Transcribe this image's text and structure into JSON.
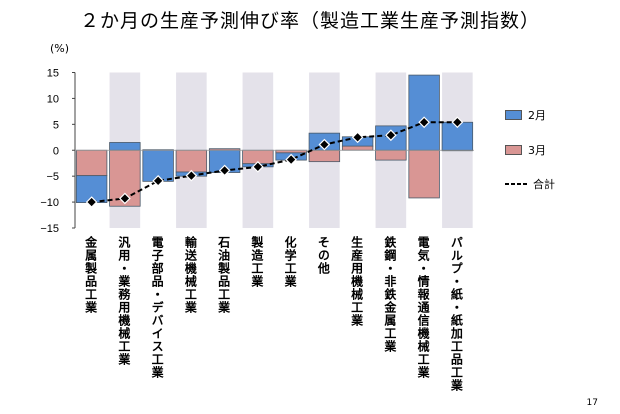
{
  "title": "２か月の生産予測伸び率（製造工業生産予測指数）",
  "page_number": "17",
  "chart_data": {
    "type": "bar",
    "stacked": true,
    "title": "２か月の生産予測伸び率（製造工業生産予測指数）",
    "ylabel": "(%)",
    "ylim": [
      -15,
      15
    ],
    "yticks": [
      15,
      10,
      5,
      0,
      -5,
      -10,
      -15
    ],
    "grid": false,
    "legend_position": "right",
    "categories": [
      "金属製品工業",
      "汎用・業務用機械工業",
      "電子部品・デバイス工業",
      "輸送機械工業",
      "石油製品工業",
      "製造工業",
      "化学工業",
      "その他",
      "生産用機械工業",
      "鉄鋼・非鉄金属工業",
      "電気・情報通信機械工業",
      "パルプ・紙・紙加工品工業"
    ],
    "series": [
      {
        "name": "2月",
        "type": "bar",
        "color": "#558ed5",
        "values": [
          -5.2,
          1.5,
          -6.0,
          -0.8,
          -4.3,
          -0.6,
          -1.4,
          3.3,
          1.8,
          4.7,
          14.5,
          5.4
        ]
      },
      {
        "name": "3月",
        "type": "bar",
        "color": "#d99694",
        "values": [
          -4.9,
          -10.8,
          0.1,
          -4.2,
          0.3,
          -2.6,
          -0.5,
          -2.2,
          0.8,
          -1.9,
          -9.2,
          0.0
        ]
      },
      {
        "name": "合計",
        "type": "line",
        "style": "dashed",
        "marker": "diamond",
        "color": "#000000",
        "values": [
          -10.0,
          -9.3,
          -5.9,
          -4.9,
          -3.9,
          -3.2,
          -1.8,
          1.1,
          2.5,
          2.9,
          5.4,
          5.4
        ]
      }
    ],
    "band_color": "#e4e2ea"
  }
}
